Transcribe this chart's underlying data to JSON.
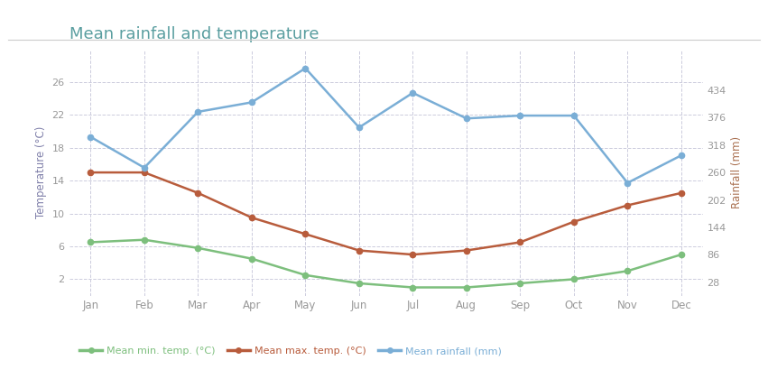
{
  "title": "Mean rainfall and temperature",
  "months": [
    "Jan",
    "Feb",
    "Mar",
    "Apr",
    "May",
    "Jun",
    "Jul",
    "Aug",
    "Sep",
    "Oct",
    "Nov",
    "Dec"
  ],
  "mean_min_temp": [
    6.5,
    6.8,
    5.8,
    4.5,
    2.5,
    1.5,
    1.0,
    1.0,
    1.5,
    2.0,
    3.0,
    5.0
  ],
  "mean_max_temp": [
    15.0,
    15.0,
    12.5,
    9.5,
    7.5,
    5.5,
    5.0,
    5.5,
    6.5,
    9.0,
    11.0,
    12.5
  ],
  "mean_rainfall": [
    335,
    270,
    388,
    408,
    480,
    355,
    428,
    374,
    380,
    380,
    238,
    296
  ],
  "temp_ylim": [
    0,
    30
  ],
  "temp_yticks": [
    2,
    6,
    10,
    14,
    18,
    22,
    26
  ],
  "rainfall_ylim": [
    0,
    520
  ],
  "rainfall_yticks": [
    28,
    86,
    144,
    202,
    260,
    318,
    376,
    434
  ],
  "color_min_temp": "#7dbf7d",
  "color_max_temp": "#b85c3c",
  "color_rainfall": "#7aaed6",
  "color_title": "#5a9ea0",
  "color_ylabel_left": "#8080aa",
  "color_ylabel_right": "#aa7050",
  "color_tick": "#999999",
  "color_grid": "#ccccdd",
  "color_bg": "#ffffff",
  "color_separator": "#cccccc",
  "legend_min_temp": "Mean min. temp. (°C)",
  "legend_max_temp": "Mean max. temp. (°C)",
  "legend_rainfall": "Mean rainfall (mm)",
  "title_fontsize": 13,
  "axis_label_fontsize": 8.5,
  "tick_fontsize": 8,
  "legend_fontsize": 8
}
